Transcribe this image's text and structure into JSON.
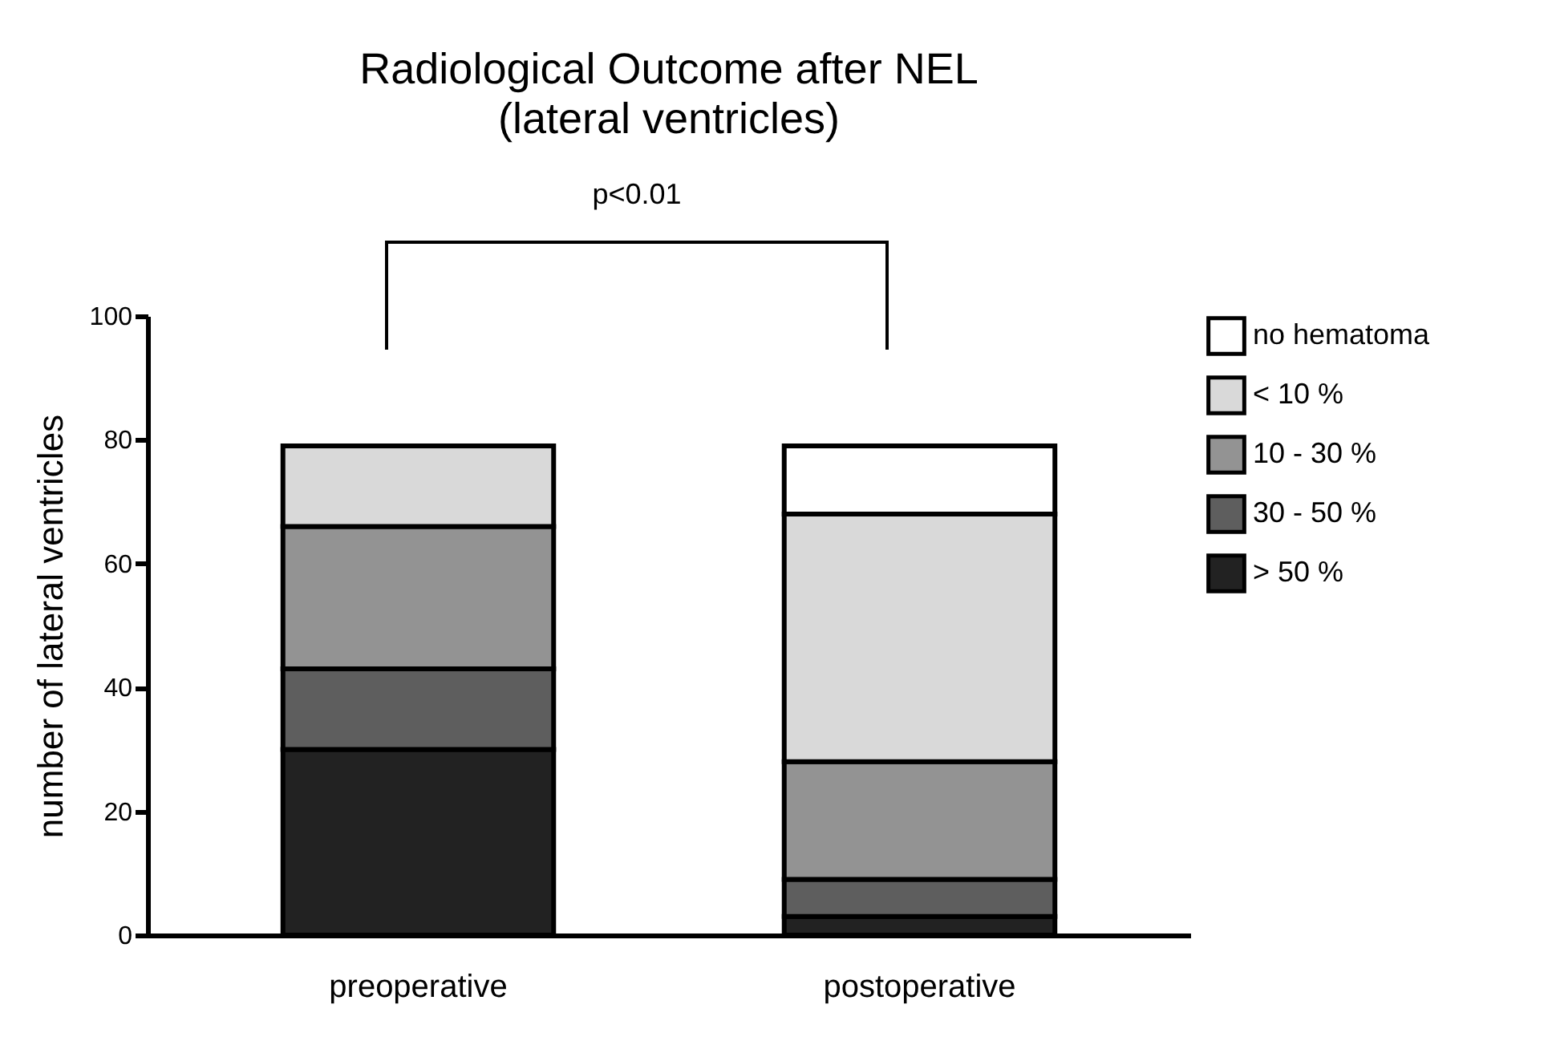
{
  "chart_data": {
    "type": "bar",
    "title": "Radiological Outcome after NEL",
    "subtitle": "(lateral ventricles)",
    "ylabel": "number of lateral ventricles",
    "categories": [
      "preoperative",
      "postoperative"
    ],
    "stacked": true,
    "series": [
      {
        "name": "> 50 %",
        "color": "#222222",
        "values": [
          30,
          3
        ]
      },
      {
        "name": "30 - 50 %",
        "color": "#5e5e5e",
        "values": [
          13,
          6
        ]
      },
      {
        "name": "10 - 30 %",
        "color": "#939393",
        "values": [
          23,
          19
        ]
      },
      {
        "name": "< 10 %",
        "color": "#d9d9d9",
        "values": [
          13,
          40
        ]
      },
      {
        "name": "no hematoma",
        "color": "#ffffff",
        "values": [
          null,
          11
        ]
      }
    ],
    "ylim": [
      0,
      100
    ],
    "yticks": [
      0,
      20,
      40,
      60,
      80,
      100
    ],
    "grid": false,
    "legend": "top right",
    "annotations": [
      "p<0.01"
    ]
  }
}
